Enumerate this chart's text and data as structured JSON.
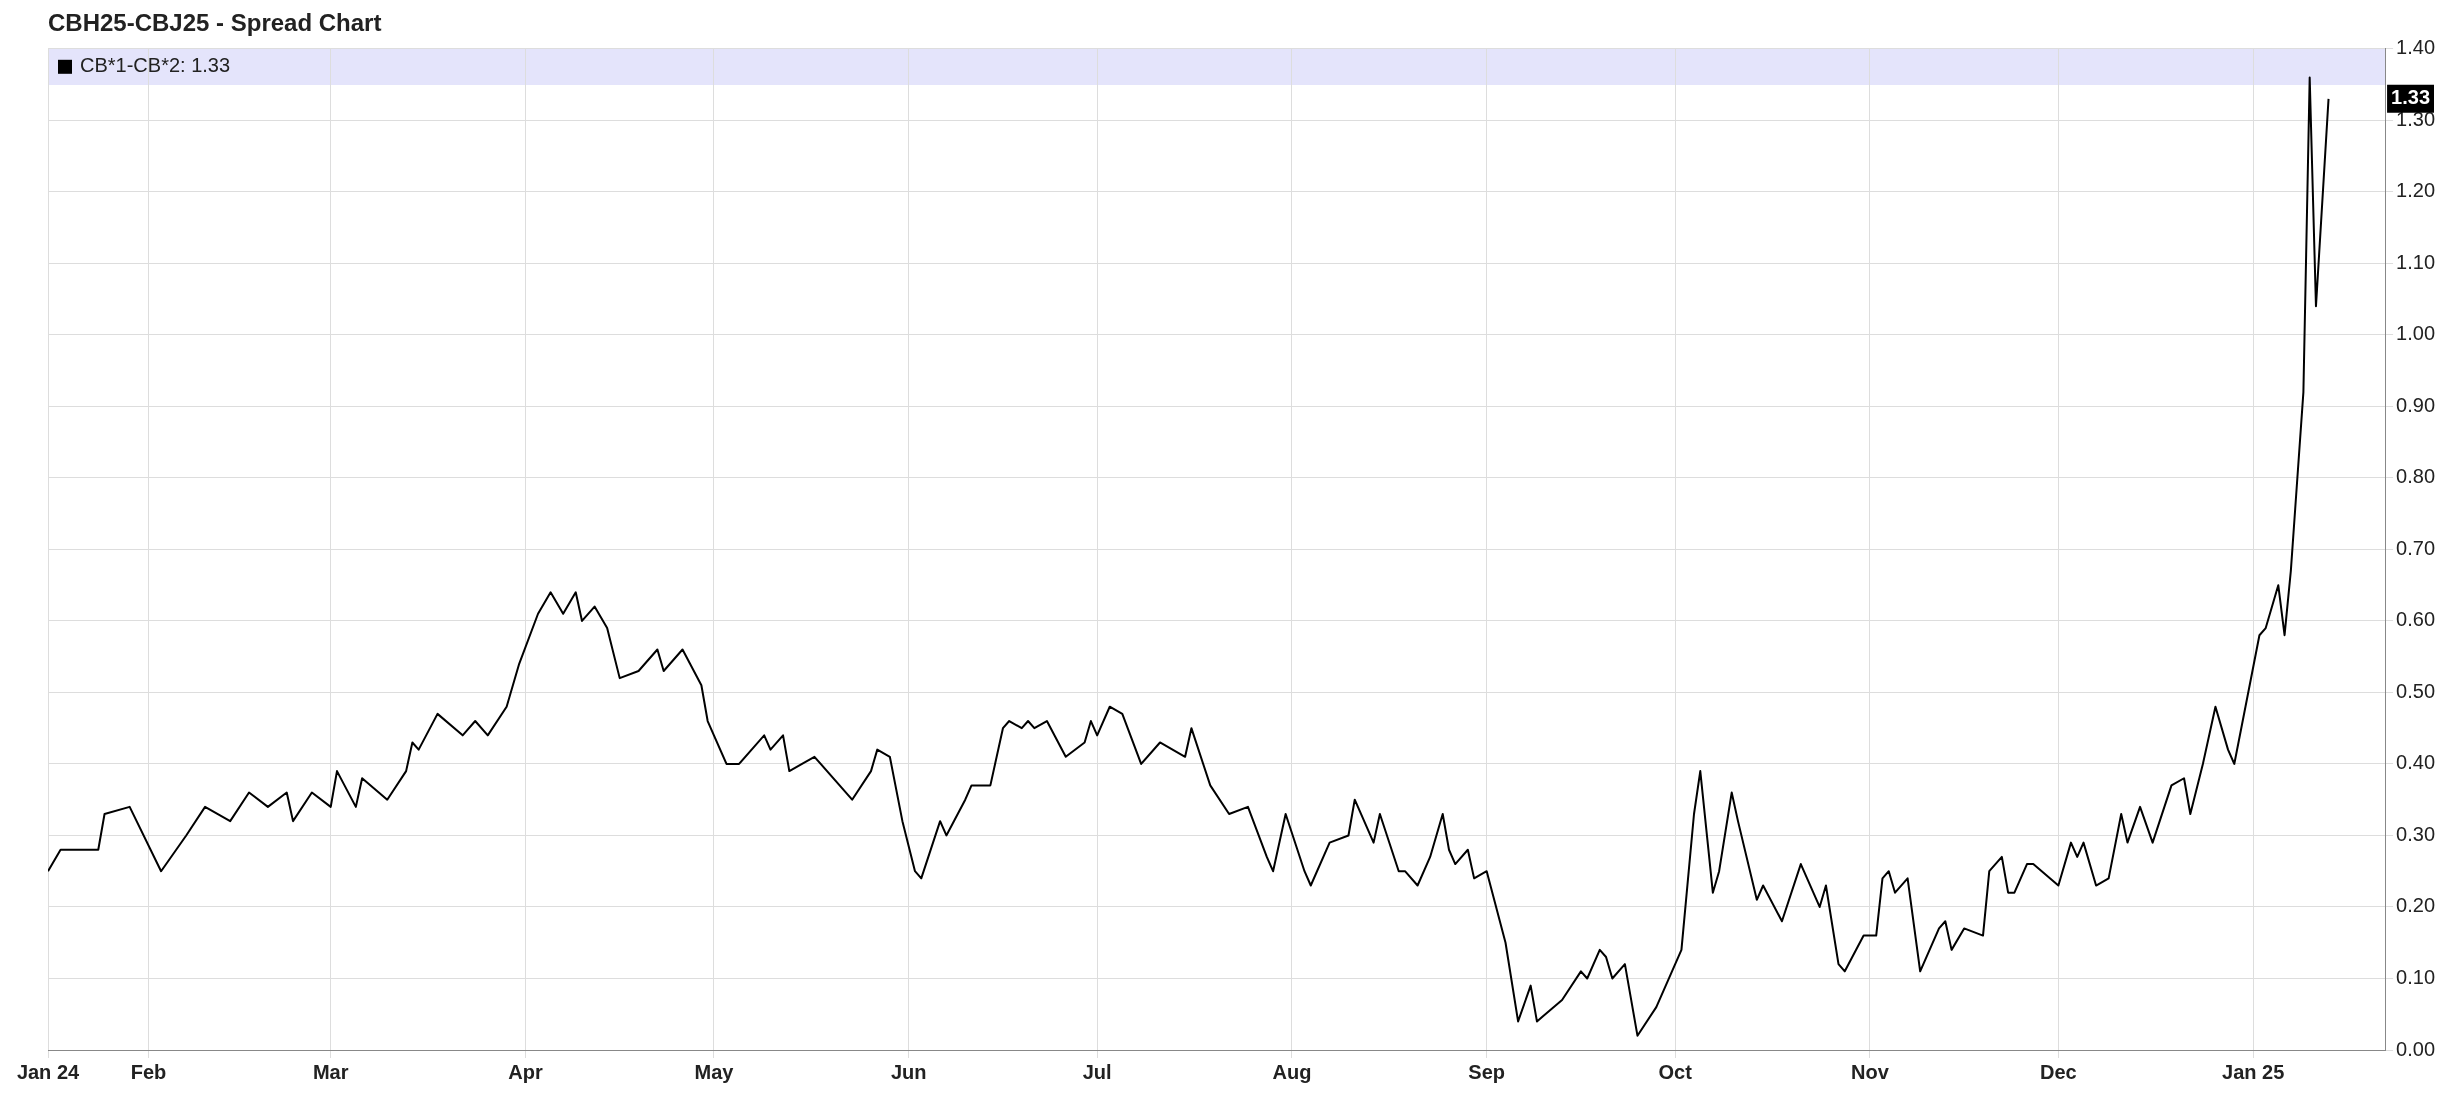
{
  "chart_data": {
    "type": "line",
    "title": "CBH25-CBJ25 - Spread Chart",
    "x": [
      "2024-01-16",
      "2024-01-18",
      "2024-01-24",
      "2024-01-25",
      "2024-01-29",
      "2024-02-03",
      "2024-02-07",
      "2024-02-10",
      "2024-02-14",
      "2024-02-17",
      "2024-02-20",
      "2024-02-23",
      "2024-02-24",
      "2024-02-27",
      "2024-03-01",
      "2024-03-02",
      "2024-03-05",
      "2024-03-06",
      "2024-03-10",
      "2024-03-13",
      "2024-03-14",
      "2024-03-15",
      "2024-03-18",
      "2024-03-22",
      "2024-03-24",
      "2024-03-26",
      "2024-03-29",
      "2024-03-31",
      "2024-04-03",
      "2024-04-05",
      "2024-04-07",
      "2024-04-09",
      "2024-04-10",
      "2024-04-12",
      "2024-04-14",
      "2024-04-16",
      "2024-04-19",
      "2024-04-22",
      "2024-04-23",
      "2024-04-26",
      "2024-04-29",
      "2024-04-30",
      "2024-05-03",
      "2024-05-05",
      "2024-05-09",
      "2024-05-10",
      "2024-05-12",
      "2024-05-13",
      "2024-05-17",
      "2024-05-23",
      "2024-05-26",
      "2024-05-27",
      "2024-05-29",
      "2024-05-31",
      "2024-06-02",
      "2024-06-03",
      "2024-06-06",
      "2024-06-07",
      "2024-06-10",
      "2024-06-11",
      "2024-06-14",
      "2024-06-16",
      "2024-06-17",
      "2024-06-19",
      "2024-06-20",
      "2024-06-21",
      "2024-06-23",
      "2024-06-26",
      "2024-06-29",
      "2024-06-30",
      "2024-07-01",
      "2024-07-03",
      "2024-07-05",
      "2024-07-08",
      "2024-07-11",
      "2024-07-15",
      "2024-07-16",
      "2024-07-19",
      "2024-07-22",
      "2024-07-25",
      "2024-07-28",
      "2024-07-29",
      "2024-07-31",
      "2024-08-03",
      "2024-08-04",
      "2024-08-07",
      "2024-08-10",
      "2024-08-11",
      "2024-08-14",
      "2024-08-15",
      "2024-08-18",
      "2024-08-19",
      "2024-08-21",
      "2024-08-23",
      "2024-08-25",
      "2024-08-26",
      "2024-08-27",
      "2024-08-29",
      "2024-08-30",
      "2024-09-01",
      "2024-09-04",
      "2024-09-06",
      "2024-09-08",
      "2024-09-09",
      "2024-09-13",
      "2024-09-16",
      "2024-09-17",
      "2024-09-19",
      "2024-09-20",
      "2024-09-21",
      "2024-09-23",
      "2024-09-24",
      "2024-09-25",
      "2024-09-28",
      "2024-10-02",
      "2024-10-04",
      "2024-10-05",
      "2024-10-07",
      "2024-10-08",
      "2024-10-10",
      "2024-10-11",
      "2024-10-14",
      "2024-10-15",
      "2024-10-18",
      "2024-10-21",
      "2024-10-24",
      "2024-10-25",
      "2024-10-27",
      "2024-10-28",
      "2024-10-31",
      "2024-11-02",
      "2024-11-03",
      "2024-11-04",
      "2024-11-05",
      "2024-11-07",
      "2024-11-09",
      "2024-11-12",
      "2024-11-13",
      "2024-11-14",
      "2024-11-16",
      "2024-11-19",
      "2024-11-20",
      "2024-11-22",
      "2024-11-23",
      "2024-11-24",
      "2024-11-26",
      "2024-11-27",
      "2024-12-01",
      "2024-12-03",
      "2024-12-04",
      "2024-12-05",
      "2024-12-07",
      "2024-12-09",
      "2024-12-11",
      "2024-12-12",
      "2024-12-14",
      "2024-12-16",
      "2024-12-19",
      "2024-12-21",
      "2024-12-22",
      "2024-12-24",
      "2024-12-26",
      "2024-12-28",
      "2024-12-29",
      "2025-01-02",
      "2025-01-03",
      "2025-01-05",
      "2025-01-06",
      "2025-01-07",
      "2025-01-09",
      "2025-01-10",
      "2025-01-11",
      "2025-01-13"
    ],
    "series": [
      {
        "name": "CB*1-CB*2: 1.33",
        "color": "#000000",
        "values": [
          0.25,
          0.28,
          0.28,
          0.33,
          0.34,
          0.25,
          0.3,
          0.34,
          0.32,
          0.36,
          0.34,
          0.36,
          0.32,
          0.36,
          0.34,
          0.39,
          0.34,
          0.38,
          0.35,
          0.39,
          0.43,
          0.42,
          0.47,
          0.44,
          0.46,
          0.44,
          0.48,
          0.54,
          0.61,
          0.64,
          0.61,
          0.64,
          0.6,
          0.62,
          0.59,
          0.52,
          0.53,
          0.56,
          0.53,
          0.56,
          0.51,
          0.46,
          0.4,
          0.4,
          0.44,
          0.42,
          0.44,
          0.39,
          0.41,
          0.35,
          0.39,
          0.42,
          0.41,
          0.32,
          0.25,
          0.24,
          0.32,
          0.3,
          0.35,
          0.37,
          0.37,
          0.45,
          0.46,
          0.45,
          0.46,
          0.45,
          0.46,
          0.41,
          0.43,
          0.46,
          0.44,
          0.48,
          0.47,
          0.4,
          0.43,
          0.41,
          0.45,
          0.37,
          0.33,
          0.34,
          0.27,
          0.25,
          0.33,
          0.25,
          0.23,
          0.29,
          0.3,
          0.35,
          0.29,
          0.33,
          0.25,
          0.25,
          0.23,
          0.27,
          0.33,
          0.28,
          0.26,
          0.28,
          0.24,
          0.25,
          0.15,
          0.04,
          0.09,
          0.04,
          0.07,
          0.11,
          0.1,
          0.14,
          0.13,
          0.1,
          0.12,
          0.07,
          0.02,
          0.06,
          0.14,
          0.33,
          0.39,
          0.22,
          0.25,
          0.36,
          0.32,
          0.21,
          0.23,
          0.18,
          0.26,
          0.2,
          0.23,
          0.12,
          0.11,
          0.16,
          0.16,
          0.24,
          0.25,
          0.22,
          0.24,
          0.11,
          0.17,
          0.18,
          0.14,
          0.17,
          0.16,
          0.25,
          0.27,
          0.22,
          0.22,
          0.26,
          0.26,
          0.23,
          0.29,
          0.27,
          0.29,
          0.23,
          0.24,
          0.33,
          0.29,
          0.34,
          0.29,
          0.37,
          0.38,
          0.33,
          0.4,
          0.48,
          0.42,
          0.4,
          0.58,
          0.59,
          0.65,
          0.58,
          0.67,
          0.92,
          1.36,
          1.04,
          1.33
        ]
      }
    ],
    "xlim": [
      "2024-01-16",
      "2025-01-22"
    ],
    "xticks": [
      {
        "value": "2024-01-16",
        "label": "Jan 24"
      },
      {
        "value": "2024-02-01",
        "label": "Feb"
      },
      {
        "value": "2024-03-01",
        "label": "Mar"
      },
      {
        "value": "2024-04-01",
        "label": "Apr"
      },
      {
        "value": "2024-05-01",
        "label": "May"
      },
      {
        "value": "2024-06-01",
        "label": "Jun"
      },
      {
        "value": "2024-07-01",
        "label": "Jul"
      },
      {
        "value": "2024-08-01",
        "label": "Aug"
      },
      {
        "value": "2024-09-01",
        "label": "Sep"
      },
      {
        "value": "2024-10-01",
        "label": "Oct"
      },
      {
        "value": "2024-11-01",
        "label": "Nov"
      },
      {
        "value": "2024-12-01",
        "label": "Dec"
      },
      {
        "value": "2025-01-01",
        "label": "Jan 25"
      }
    ],
    "ylim": [
      0,
      1.4
    ],
    "yticks": [
      {
        "value": 0,
        "label": "0.00"
      },
      {
        "value": 0.1,
        "label": "0.10"
      },
      {
        "value": 0.2,
        "label": "0.20"
      },
      {
        "value": 0.3,
        "label": "0.30"
      },
      {
        "value": 0.4,
        "label": "0.40"
      },
      {
        "value": 0.5,
        "label": "0.50"
      },
      {
        "value": 0.6,
        "label": "0.60"
      },
      {
        "value": 0.7,
        "label": "0.70"
      },
      {
        "value": 0.8,
        "label": "0.80"
      },
      {
        "value": 0.9,
        "label": "0.90"
      },
      {
        "value": 1.0,
        "label": "1.00"
      },
      {
        "value": 1.1,
        "label": "1.10"
      },
      {
        "value": 1.2,
        "label": "1.20"
      },
      {
        "value": 1.3,
        "label": "1.30"
      },
      {
        "value": 1.4,
        "label": "1.40"
      }
    ],
    "annotations": [
      "1.33"
    ],
    "grid": true,
    "legend": "top left",
    "marker": "none",
    "line_style": "solid"
  }
}
